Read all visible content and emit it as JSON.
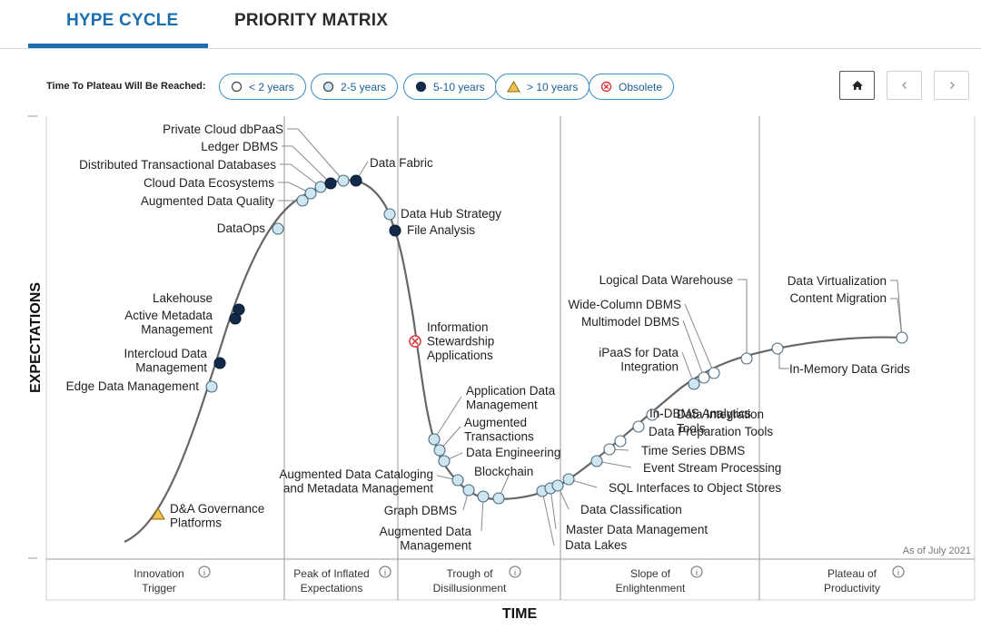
{
  "tabs": [
    {
      "label": "HYPE CYCLE",
      "active": true
    },
    {
      "label": "PRIORITY MATRIX",
      "active": false
    }
  ],
  "legend": {
    "title": "Time To Plateau Will Be Reached:",
    "items": [
      {
        "key": "lt2",
        "label": "< 2 years"
      },
      {
        "key": "2to5",
        "label": "2-5 years"
      },
      {
        "key": "5to10",
        "label": "5-10 years"
      },
      {
        "key": "gt10",
        "label": "> 10 years"
      },
      {
        "key": "obsolete",
        "label": "Obsolete"
      }
    ]
  },
  "nav": {
    "home_icon": "home-icon",
    "prev_icon": "chevron-left-icon",
    "next_icon": "chevron-right-icon"
  },
  "colors": {
    "accent": "#1a6fb0",
    "lt2": "#ffffff",
    "2to5": "#cde6f0",
    "5to10": "#12294a",
    "gt10": "#f2c14e",
    "obsolete": "#d9363e",
    "curve": "#666666"
  },
  "axes": {
    "y_label": "EXPECTATIONS",
    "x_label": "TIME",
    "as_of": "As of July 2021"
  },
  "phases": [
    {
      "lines": [
        "Innovation",
        "Trigger"
      ]
    },
    {
      "lines": [
        "Peak of Inflated",
        "Expectations"
      ]
    },
    {
      "lines": [
        "Trough of",
        "Disillusionment"
      ]
    },
    {
      "lines": [
        "Slope of",
        "Enlightenment"
      ]
    },
    {
      "lines": [
        "Plateau of",
        "Productivity"
      ]
    }
  ],
  "chart_data": {
    "type": "scatter",
    "title": "Hype Cycle",
    "xlabel": "TIME",
    "ylabel": "EXPECTATIONS",
    "phases": [
      "Innovation Trigger",
      "Peak of Inflated Expectations",
      "Trough of Disillusionment",
      "Slope of Enlightenment",
      "Plateau of Productivity"
    ],
    "technologies": [
      {
        "name": [
          "D&A Governance",
          "Platforms"
        ],
        "status": "gt10"
      },
      {
        "name": [
          "Edge Data Management"
        ],
        "status": "2to5"
      },
      {
        "name": [
          "Intercloud Data",
          "Management"
        ],
        "status": "5to10"
      },
      {
        "name": [
          "Active Metadata",
          "Management"
        ],
        "status": "5to10"
      },
      {
        "name": [
          "Lakehouse"
        ],
        "status": "5to10"
      },
      {
        "name": [
          "DataOps"
        ],
        "status": "2to5"
      },
      {
        "name": [
          "Augmented Data Quality"
        ],
        "status": "2to5"
      },
      {
        "name": [
          "Cloud Data Ecosystems"
        ],
        "status": "2to5"
      },
      {
        "name": [
          "Distributed Transactional Databases"
        ],
        "status": "2to5"
      },
      {
        "name": [
          "Ledger DBMS"
        ],
        "status": "5to10"
      },
      {
        "name": [
          "Private Cloud dbPaaS"
        ],
        "status": "2to5"
      },
      {
        "name": [
          "Data Fabric"
        ],
        "status": "5to10"
      },
      {
        "name": [
          "Data Hub Strategy"
        ],
        "status": "2to5"
      },
      {
        "name": [
          "File Analysis"
        ],
        "status": "5to10"
      },
      {
        "name": [
          "Information",
          "Stewardship",
          "Applications"
        ],
        "status": "obsolete"
      },
      {
        "name": [
          "Application Data",
          "Management"
        ],
        "status": "2to5"
      },
      {
        "name": [
          "Augmented",
          "Transactions"
        ],
        "status": "2to5"
      },
      {
        "name": [
          "Data Engineering"
        ],
        "status": "2to5"
      },
      {
        "name": [
          "Augmented Data Cataloging",
          "and Metadata Management"
        ],
        "status": "2to5"
      },
      {
        "name": [
          "Graph DBMS"
        ],
        "status": "2to5"
      },
      {
        "name": [
          "Augmented Data",
          "Management"
        ],
        "status": "2to5"
      },
      {
        "name": [
          "Blockchain"
        ],
        "status": "2to5"
      },
      {
        "name": [
          "Data Lakes"
        ],
        "status": "2to5"
      },
      {
        "name": [
          "Master Data Management"
        ],
        "status": "2to5"
      },
      {
        "name": [
          "Data Classification"
        ],
        "status": "2to5"
      },
      {
        "name": [
          "SQL Interfaces to Object Stores"
        ],
        "status": "2to5"
      },
      {
        "name": [
          "Event Stream Processing"
        ],
        "status": "2to5"
      },
      {
        "name": [
          "Time Series DBMS"
        ],
        "status": "lt2"
      },
      {
        "name": [
          "Data Preparation Tools"
        ],
        "status": "lt2"
      },
      {
        "name": [
          "In-DBMS Analytics"
        ],
        "status": "lt2"
      },
      {
        "name": [
          "Data Integration",
          "Tools"
        ],
        "status": "lt2"
      },
      {
        "name": [
          "iPaaS for Data",
          "Integration"
        ],
        "status": "2to5"
      },
      {
        "name": [
          "Multimodel DBMS"
        ],
        "status": "lt2"
      },
      {
        "name": [
          "Wide-Column DBMS"
        ],
        "status": "lt2"
      },
      {
        "name": [
          "Logical Data Warehouse"
        ],
        "status": "lt2"
      },
      {
        "name": [
          "In-Memory Data Grids"
        ],
        "status": "lt2"
      },
      {
        "name": [
          "Data Virtualization"
        ],
        "status": "lt2"
      },
      {
        "name": [
          "Content Migration"
        ],
        "status": "lt2"
      }
    ]
  }
}
